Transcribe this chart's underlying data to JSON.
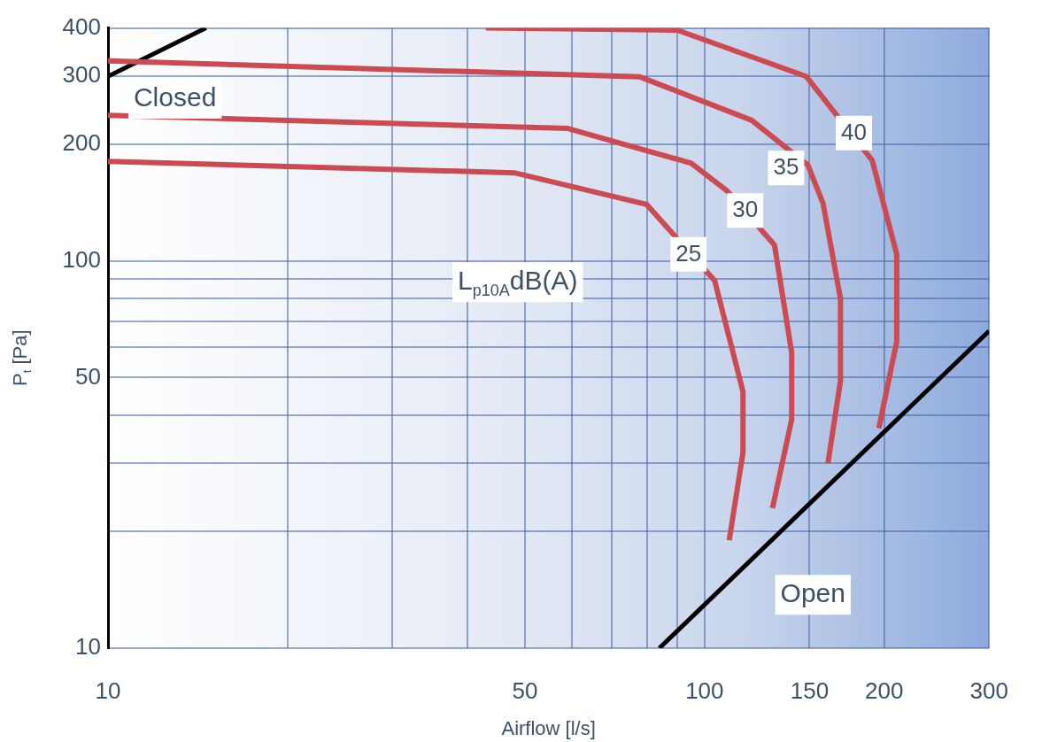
{
  "chart_data": {
    "type": "line",
    "xlabel": "Airflow [l/s]",
    "ylabel": "P$_{t}$ [Pa]",
    "log": "xy",
    "grid": true,
    "legend": false,
    "marker": "none",
    "line_style": "solid",
    "xlim": [
      10,
      300
    ],
    "ylim": [
      10,
      400
    ],
    "xticks": [
      10,
      {
        "value": 20,
        "label": null
      },
      {
        "value": 30,
        "label": null
      },
      {
        "value": 40,
        "label": null
      },
      50,
      {
        "value": 60,
        "label": null
      },
      {
        "value": 70,
        "label": null
      },
      {
        "value": 80,
        "label": null
      },
      {
        "value": 90,
        "label": null
      },
      100,
      150,
      200,
      300
    ],
    "yticks": [
      10,
      {
        "value": 20,
        "label": null
      },
      {
        "value": 30,
        "label": null
      },
      {
        "value": 40,
        "label": null
      },
      50,
      {
        "value": 60,
        "label": null
      },
      {
        "value": 70,
        "label": null
      },
      {
        "value": 80,
        "label": null
      },
      {
        "value": 90,
        "label": null
      },
      100,
      200,
      300,
      400
    ],
    "series": [
      {
        "color": "#cc4a52",
        "x": [
          10,
          48,
          80,
          104,
          116,
          116,
          110
        ],
        "values": [
          181,
          169,
          140,
          89,
          46,
          32,
          19
        ]
      },
      {
        "color": "#cc4a52",
        "x": [
          10,
          59,
          95,
          109,
          131,
          140,
          140,
          130
        ],
        "values": [
          238,
          220,
          179,
          152,
          110,
          58,
          39,
          23
        ]
      },
      {
        "color": "#cc4a52",
        "x": [
          10,
          78,
          120,
          149,
          158,
          169,
          169,
          161
        ],
        "values": [
          329,
          299,
          231,
          177,
          141,
          80,
          49,
          30
        ]
      },
      {
        "color": "#cc4a52",
        "x": [
          43,
          90,
          148,
          191,
          210,
          210,
          196
        ],
        "values": [
          400,
          395,
          300,
          182,
          104,
          62,
          37
        ]
      },
      {
        "color": "#000000",
        "x": [
          10,
          14.6
        ],
        "values": [
          300,
          400
        ]
      },
      {
        "color": "#000000",
        "x": [
          84,
          300
        ],
        "values": [
          10,
          66
        ]
      }
    ],
    "annotations": [
      "Closed",
      "Open",
      {
        "text": "25",
        "x": 94,
        "y": 104
      },
      {
        "text": "30",
        "x": 117,
        "y": 135
      },
      {
        "text": "35",
        "x": 137,
        "y": 174
      },
      {
        "text": "40",
        "x": 178,
        "y": 214
      },
      "L$_{p10A}$dB(A)"
    ]
  }
}
